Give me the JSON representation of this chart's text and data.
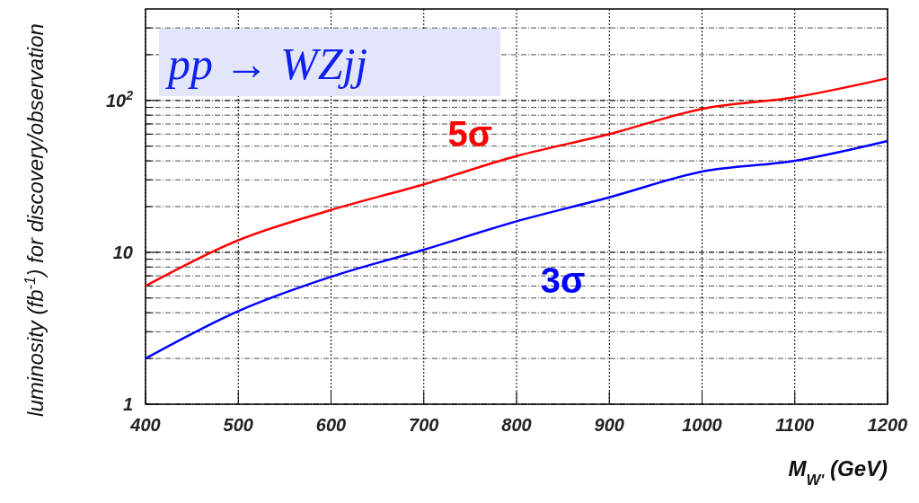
{
  "chart_data": {
    "type": "line",
    "xlabel": "M$_{W'}$ (GeV)",
    "ylabel": "luminosity (fb$^{-1}$) for discovery/observation",
    "annotations": [
      "pp → WZjj"
    ],
    "x": [
      400,
      500,
      600,
      700,
      800,
      900,
      1000,
      1100,
      1200
    ],
    "series": [
      {
        "name": "5σ",
        "color": "#ff0000",
        "values": [
          6,
          12,
          19,
          28,
          43,
          60,
          88,
          105,
          140
        ]
      },
      {
        "name": "3σ",
        "color": "#0000ff",
        "values": [
          2,
          4.1,
          6.9,
          10.4,
          16,
          23,
          34,
          40,
          54
        ]
      }
    ],
    "log": "y",
    "xlim": [
      400,
      1200
    ],
    "xticks": [
      400,
      500,
      600,
      700,
      800,
      900,
      1000,
      1100,
      1200
    ],
    "ylim": [
      1,
      400
    ],
    "yticks": [
      {
        "value": 1,
        "label": "1"
      },
      {
        "value": 2,
        "label": null
      },
      {
        "value": 3,
        "label": null
      },
      {
        "value": 4,
        "label": null
      },
      {
        "value": 5,
        "label": null
      },
      {
        "value": 6,
        "label": null
      },
      {
        "value": 7,
        "label": null
      },
      {
        "value": 8,
        "label": null
      },
      {
        "value": 9,
        "label": null
      },
      {
        "value": 10,
        "label": "10"
      },
      {
        "value": 20,
        "label": null
      },
      {
        "value": 30,
        "label": null
      },
      {
        "value": 40,
        "label": null
      },
      {
        "value": 50,
        "label": null
      },
      {
        "value": 60,
        "label": null
      },
      {
        "value": 70,
        "label": null
      },
      {
        "value": 80,
        "label": null
      },
      {
        "value": 90,
        "label": null
      },
      {
        "value": 100,
        "label": "10$^{2}$"
      },
      {
        "value": 200,
        "label": null
      },
      {
        "value": 300,
        "label": null
      }
    ],
    "grid": true,
    "line_style": "solid"
  }
}
